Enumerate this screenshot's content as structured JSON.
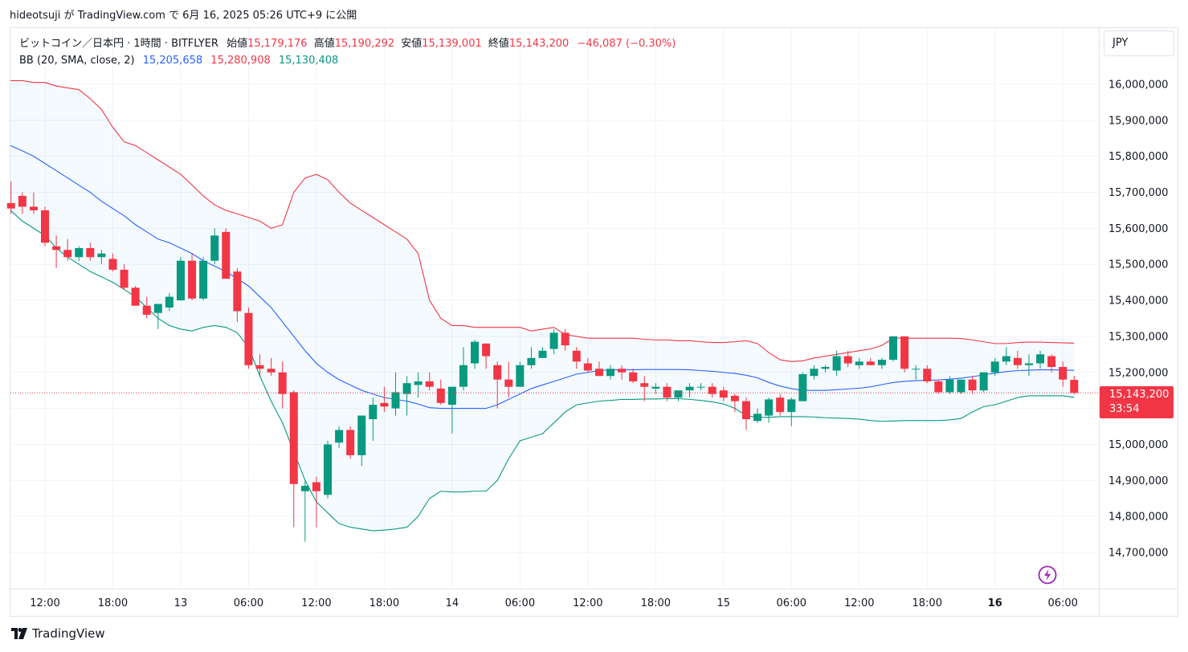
{
  "header": {
    "text": "hideotsuji が TradingView.com で 6月 16, 2025 05:26 UTC+9 に公開"
  },
  "legend": {
    "symbol": "ビットコイン／日本円 · 1時間 · BITFLYER",
    "open_label": "始値",
    "open": "15,179,176",
    "high_label": "高値",
    "high": "15,190,292",
    "low_label": "安値",
    "low": "15,139,001",
    "close_label": "終値",
    "close": "15,143,200",
    "change": "−46,087 (−0.30%)",
    "bb_label": "BB (20, SMA, close, 2)",
    "bb_basis": "15,205,658",
    "bb_upper": "15,280,908",
    "bb_lower": "15,130,408"
  },
  "currency_button": "JPY",
  "last_price": {
    "value": "15,143,200",
    "countdown": "33:54"
  },
  "footer": {
    "brand": "TradingView"
  },
  "colors": {
    "up": "#089981",
    "down": "#f23645",
    "basis": "#2962ff",
    "upper": "#f23645",
    "lower": "#089981",
    "band_fill": "#2196f3",
    "grid": "#f0f3fa"
  },
  "chart_data": {
    "type": "candlestick",
    "ylim": [
      14620000,
      16100000
    ],
    "y_ticks": [
      14700000,
      14800000,
      14900000,
      15000000,
      15100000,
      15200000,
      15300000,
      15400000,
      15500000,
      15600000,
      15700000,
      15800000,
      15900000,
      16000000
    ],
    "y_tick_labels": [
      "14,700,000",
      "14,800,000",
      "14,900,000",
      "15,000,000",
      "15,100,000",
      "15,200,000",
      "15,300,000",
      "15,400,000",
      "15,500,000",
      "15,600,000",
      "15,700,000",
      "15,800,000",
      "15,900,000",
      "16,000,000"
    ],
    "x_ticks": [
      {
        "label": "12:00",
        "index": 3,
        "bold": false
      },
      {
        "label": "18:00",
        "index": 9,
        "bold": false
      },
      {
        "label": "13",
        "index": 15,
        "bold": false
      },
      {
        "label": "06:00",
        "index": 21,
        "bold": false
      },
      {
        "label": "12:00",
        "index": 27,
        "bold": false
      },
      {
        "label": "18:00",
        "index": 33,
        "bold": false
      },
      {
        "label": "14",
        "index": 39,
        "bold": false
      },
      {
        "label": "06:00",
        "index": 45,
        "bold": false
      },
      {
        "label": "12:00",
        "index": 51,
        "bold": false
      },
      {
        "label": "18:00",
        "index": 57,
        "bold": false
      },
      {
        "label": "15",
        "index": 63,
        "bold": false
      },
      {
        "label": "06:00",
        "index": 69,
        "bold": false
      },
      {
        "label": "12:00",
        "index": 75,
        "bold": false
      },
      {
        "label": "18:00",
        "index": 81,
        "bold": false
      },
      {
        "label": "16",
        "index": 87,
        "bold": true
      },
      {
        "label": "06:00",
        "index": 93,
        "bold": false
      }
    ],
    "candles": [
      [
        15670000,
        15730000,
        15640000,
        15655000
      ],
      [
        15690000,
        15700000,
        15640000,
        15660000
      ],
      [
        15660000,
        15700000,
        15640000,
        15650000
      ],
      [
        15650000,
        15660000,
        15550000,
        15560000
      ],
      [
        15550000,
        15580000,
        15490000,
        15540000
      ],
      [
        15540000,
        15570000,
        15510000,
        15520000
      ],
      [
        15520000,
        15550000,
        15510000,
        15545000
      ],
      [
        15545000,
        15560000,
        15510000,
        15520000
      ],
      [
        15520000,
        15540000,
        15500000,
        15530000
      ],
      [
        15515000,
        15530000,
        15480000,
        15485000
      ],
      [
        15485000,
        15500000,
        15430000,
        15435000
      ],
      [
        15435000,
        15440000,
        15390000,
        15385000
      ],
      [
        15385000,
        15410000,
        15350000,
        15360000
      ],
      [
        15365000,
        15390000,
        15320000,
        15390000
      ],
      [
        15380000,
        15420000,
        15370000,
        15410000
      ],
      [
        15400000,
        15520000,
        15400000,
        15510000
      ],
      [
        15510000,
        15530000,
        15400000,
        15405000
      ],
      [
        15405000,
        15520000,
        15400000,
        15510000
      ],
      [
        15510000,
        15600000,
        15500000,
        15580000
      ],
      [
        15590000,
        15600000,
        15460000,
        15460000
      ],
      [
        15480000,
        15490000,
        15340000,
        15370000
      ],
      [
        15365000,
        15380000,
        15210000,
        15220000
      ],
      [
        15220000,
        15250000,
        15190000,
        15210000
      ],
      [
        15210000,
        15240000,
        15190000,
        15200000
      ],
      [
        15200000,
        15230000,
        15100000,
        15140000
      ],
      [
        15145000,
        15150000,
        14770000,
        14890000
      ],
      [
        14870000,
        14900000,
        14730000,
        14885000
      ],
      [
        14895000,
        14910000,
        14770000,
        14870000
      ],
      [
        14860000,
        15010000,
        14850000,
        15000000
      ],
      [
        15005000,
        15050000,
        14990000,
        15040000
      ],
      [
        15040000,
        15050000,
        14960000,
        14970000
      ],
      [
        14970000,
        15080000,
        14940000,
        15080000
      ],
      [
        15070000,
        15130000,
        15010000,
        15110000
      ],
      [
        15115000,
        15160000,
        15090000,
        15105000
      ],
      [
        15100000,
        15200000,
        15080000,
        15145000
      ],
      [
        15140000,
        15190000,
        15080000,
        15170000
      ],
      [
        15165000,
        15200000,
        15130000,
        15175000
      ],
      [
        15175000,
        15200000,
        15150000,
        15160000
      ],
      [
        15155000,
        15180000,
        15110000,
        15115000
      ],
      [
        15110000,
        15160000,
        15030000,
        15160000
      ],
      [
        15160000,
        15270000,
        15150000,
        15220000
      ],
      [
        15225000,
        15290000,
        15210000,
        15285000
      ],
      [
        15280000,
        15280000,
        15210000,
        15245000
      ],
      [
        15220000,
        15230000,
        15100000,
        15180000
      ],
      [
        15180000,
        15230000,
        15130000,
        15160000
      ],
      [
        15160000,
        15230000,
        15160000,
        15220000
      ],
      [
        15220000,
        15270000,
        15210000,
        15240000
      ],
      [
        15240000,
        15270000,
        15240000,
        15260000
      ],
      [
        15265000,
        15320000,
        15250000,
        15310000
      ],
      [
        15310000,
        15320000,
        15260000,
        15275000
      ],
      [
        15260000,
        15270000,
        15210000,
        15230000
      ],
      [
        15225000,
        15240000,
        15200000,
        15205000
      ],
      [
        15210000,
        15230000,
        15190000,
        15190000
      ],
      [
        15190000,
        15220000,
        15180000,
        15210000
      ],
      [
        15210000,
        15220000,
        15180000,
        15200000
      ],
      [
        15200000,
        15210000,
        15170000,
        15175000
      ],
      [
        15170000,
        15190000,
        15120000,
        15160000
      ],
      [
        15155000,
        15170000,
        15140000,
        15160000
      ],
      [
        15160000,
        15170000,
        15120000,
        15130000
      ],
      [
        15130000,
        15150000,
        15120000,
        15150000
      ],
      [
        15150000,
        15170000,
        15130000,
        15160000
      ],
      [
        15160000,
        15170000,
        15150000,
        15160000
      ],
      [
        15160000,
        15170000,
        15130000,
        15140000
      ],
      [
        15150000,
        15160000,
        15120000,
        15130000
      ],
      [
        15135000,
        15140000,
        15090000,
        15120000
      ],
      [
        15120000,
        15130000,
        15040000,
        15070000
      ],
      [
        15065000,
        15100000,
        15060000,
        15085000
      ],
      [
        15080000,
        15130000,
        15060000,
        15125000
      ],
      [
        15130000,
        15140000,
        15080000,
        15090000
      ],
      [
        15090000,
        15130000,
        15050000,
        15125000
      ],
      [
        15120000,
        15200000,
        15120000,
        15195000
      ],
      [
        15190000,
        15220000,
        15180000,
        15210000
      ],
      [
        15210000,
        15220000,
        15200000,
        15215000
      ],
      [
        15205000,
        15260000,
        15190000,
        15245000
      ],
      [
        15245000,
        15260000,
        15215000,
        15225000
      ],
      [
        15220000,
        15240000,
        15210000,
        15230000
      ],
      [
        15230000,
        15240000,
        15220000,
        15220000
      ],
      [
        15220000,
        15240000,
        15210000,
        15235000
      ],
      [
        15235000,
        15300000,
        15230000,
        15300000
      ],
      [
        15300000,
        15300000,
        15200000,
        15210000
      ],
      [
        15210000,
        15220000,
        15180000,
        15210000
      ],
      [
        15210000,
        15220000,
        15170000,
        15175000
      ],
      [
        15175000,
        15180000,
        15140000,
        15145000
      ],
      [
        15145000,
        15190000,
        15140000,
        15180000
      ],
      [
        15145000,
        15180000,
        15140000,
        15180000
      ],
      [
        15180000,
        15190000,
        15140000,
        15150000
      ],
      [
        15150000,
        15200000,
        15145000,
        15200000
      ],
      [
        15200000,
        15240000,
        15190000,
        15230000
      ],
      [
        15230000,
        15270000,
        15220000,
        15245000
      ],
      [
        15240000,
        15260000,
        15210000,
        15220000
      ],
      [
        15220000,
        15250000,
        15190000,
        15225000
      ],
      [
        15225000,
        15260000,
        15210000,
        15250000
      ],
      [
        15245000,
        15250000,
        15200000,
        15215000
      ],
      [
        15215000,
        15230000,
        15160000,
        15180000
      ],
      [
        15179176,
        15190292,
        15139001,
        15143200
      ]
    ],
    "bb_upper": [
      16010000,
      16010000,
      16005000,
      16005000,
      15995000,
      15990000,
      15985000,
      15960000,
      15930000,
      15880000,
      15840000,
      15830000,
      15810000,
      15790000,
      15770000,
      15750000,
      15720000,
      15690000,
      15665000,
      15650000,
      15640000,
      15630000,
      15620000,
      15600000,
      15610000,
      15700000,
      15740000,
      15750000,
      15735000,
      15700000,
      15670000,
      15650000,
      15630000,
      15610000,
      15590000,
      15570000,
      15530000,
      15400000,
      15350000,
      15330000,
      15330000,
      15325000,
      15325000,
      15325000,
      15325000,
      15325000,
      15315000,
      15320000,
      15325000,
      15305000,
      15300000,
      15295000,
      15295000,
      15295000,
      15295000,
      15295000,
      15292000,
      15290000,
      15290000,
      15288000,
      15288000,
      15285000,
      15283000,
      15283000,
      15285000,
      15288000,
      15280000,
      15255000,
      15235000,
      15230000,
      15232000,
      15240000,
      15245000,
      15250000,
      15255000,
      15260000,
      15265000,
      15275000,
      15295000,
      15295000,
      15295000,
      15295000,
      15295000,
      15295000,
      15294000,
      15290000,
      15285000,
      15280000,
      15280000,
      15283000,
      15284000,
      15284000,
      15283000,
      15282000,
      15281000
    ],
    "bb_basis": [
      15830000,
      15815000,
      15800000,
      15780000,
      15760000,
      15740000,
      15720000,
      15700000,
      15675000,
      15655000,
      15635000,
      15610000,
      15590000,
      15570000,
      15560000,
      15545000,
      15530000,
      15510000,
      15495000,
      15480000,
      15460000,
      15440000,
      15410000,
      15380000,
      15340000,
      15300000,
      15260000,
      15225000,
      15200000,
      15180000,
      15165000,
      15150000,
      15140000,
      15130000,
      15125000,
      15120000,
      15112000,
      15102000,
      15100000,
      15100000,
      15100000,
      15100000,
      15100000,
      15110000,
      15125000,
      15140000,
      15155000,
      15165000,
      15175000,
      15185000,
      15195000,
      15200000,
      15205000,
      15207000,
      15207000,
      15207000,
      15208000,
      15208000,
      15208000,
      15208000,
      15207000,
      15205000,
      15203000,
      15200000,
      15197000,
      15192000,
      15185000,
      15172000,
      15162000,
      15155000,
      15150000,
      15150000,
      15150000,
      15152000,
      15154000,
      15156000,
      15160000,
      15166000,
      15172000,
      15175000,
      15177000,
      15178000,
      15179000,
      15181000,
      15184000,
      15188000,
      15193000,
      15198000,
      15202000,
      15205000,
      15206000,
      15207000,
      15207000,
      15206500,
      15205658
    ],
    "bb_lower": [
      15650000,
      15620000,
      15600000,
      15580000,
      15545000,
      15520000,
      15500000,
      15480000,
      15465000,
      15450000,
      15430000,
      15410000,
      15380000,
      15350000,
      15330000,
      15320000,
      15315000,
      15325000,
      15330000,
      15325000,
      15310000,
      15270000,
      15190000,
      15120000,
      15060000,
      14980000,
      14900000,
      14840000,
      14810000,
      14780000,
      14770000,
      14765000,
      14760000,
      14762000,
      14765000,
      14770000,
      14800000,
      14850000,
      14870000,
      14868000,
      14868000,
      14870000,
      14870000,
      14900000,
      14960000,
      15010000,
      15020000,
      15030000,
      15060000,
      15090000,
      15110000,
      15115000,
      15120000,
      15122000,
      15125000,
      15125000,
      15126000,
      15126000,
      15127000,
      15127000,
      15125000,
      15122000,
      15118000,
      15112000,
      15100000,
      15080000,
      15075000,
      15075000,
      15077000,
      15077000,
      15077000,
      15076000,
      15074000,
      15073000,
      15072000,
      15070000,
      15066000,
      15064000,
      15065000,
      15066000,
      15066000,
      15066000,
      15066000,
      15068000,
      15072000,
      15090000,
      15105000,
      15110000,
      15120000,
      15130000,
      15135000,
      15135000,
      15135000,
      15135000,
      15130408
    ]
  }
}
